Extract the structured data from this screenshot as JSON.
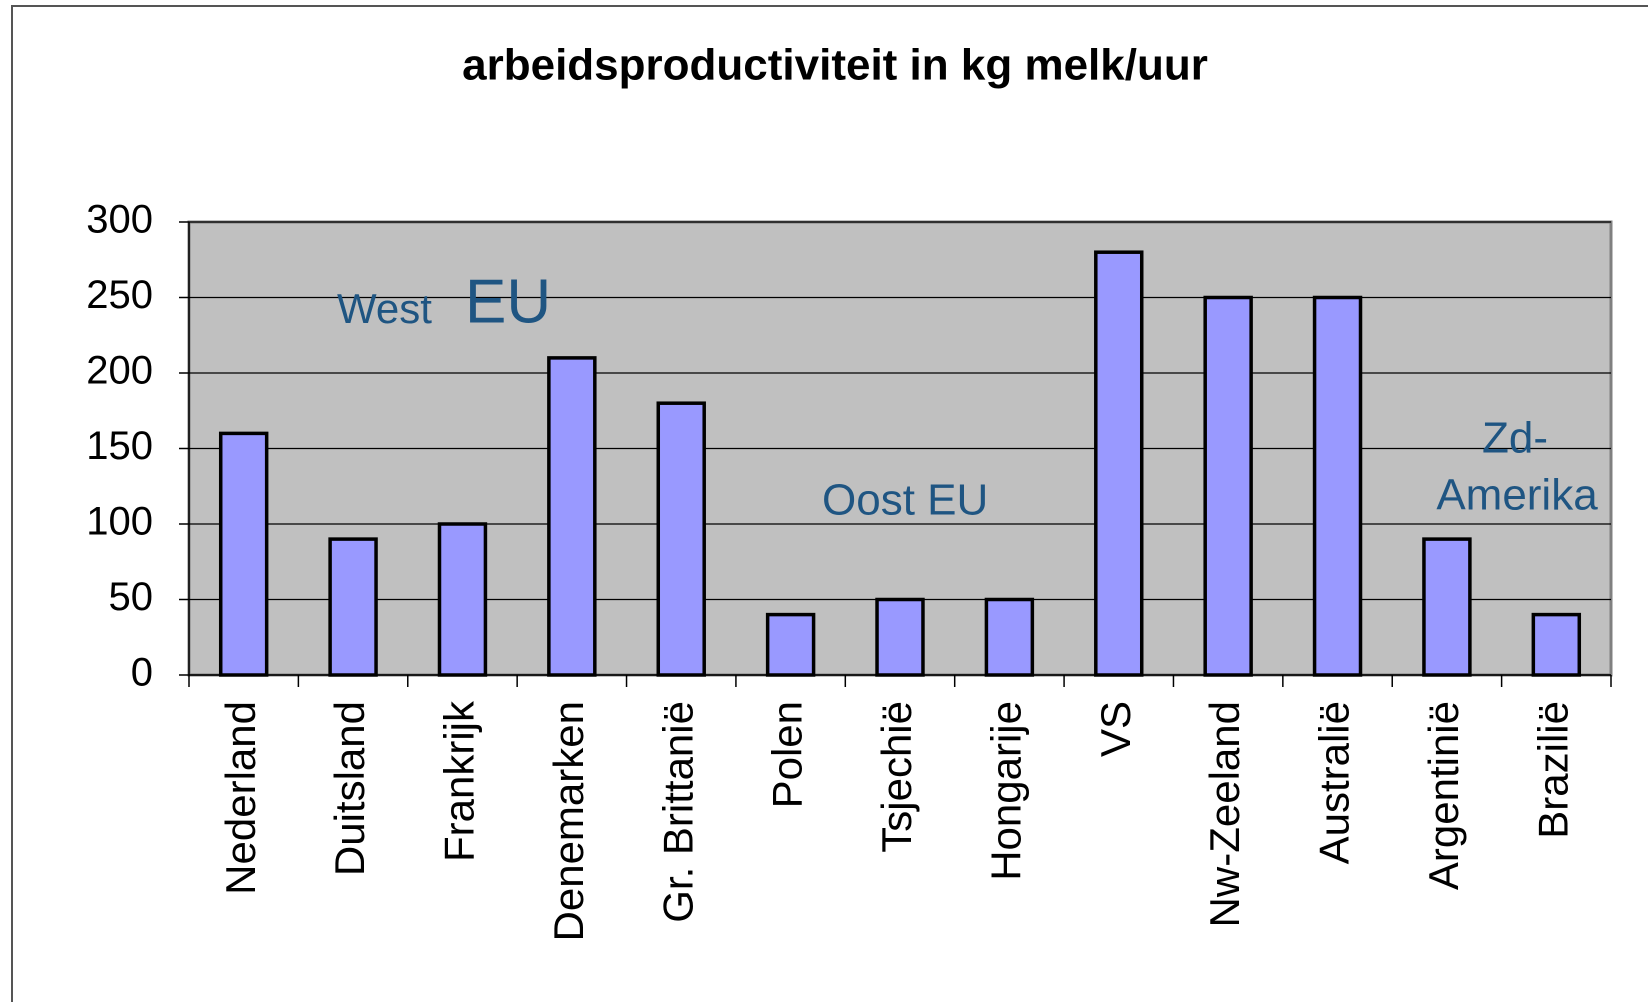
{
  "chart_data": {
    "type": "bar",
    "title": "arbeidsproductiviteit in kg melk/uur",
    "categories": [
      "Nederland",
      "Duitsland",
      "Frankrijk",
      "Denemarken",
      "Gr. Brittanië",
      "Polen",
      "Tsjechië",
      "Hongarije",
      "VS",
      "Nw-Zeeland",
      "Australië",
      "Argentinië",
      "Brazilië"
    ],
    "values": [
      160,
      90,
      100,
      210,
      180,
      40,
      50,
      50,
      280,
      250,
      250,
      90,
      40
    ],
    "color": "#9999ff",
    "background": "#c0c0c0",
    "ylim": [
      0,
      300
    ],
    "yticks": [
      0,
      50,
      100,
      150,
      200,
      250,
      300
    ],
    "grid": true,
    "annotations": [
      "West",
      "EU",
      "Oost EU",
      "Zd-",
      "Amerika"
    ]
  }
}
